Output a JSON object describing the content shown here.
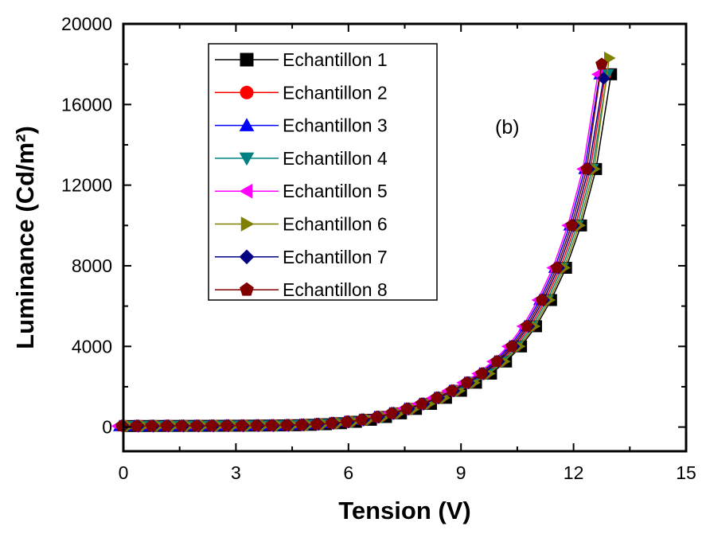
{
  "chart_data": {
    "type": "line",
    "xlabel": "Tension (V)",
    "ylabel": "Luminance (Cd/m²)",
    "xlim": [
      0,
      15
    ],
    "ylim": [
      -1200,
      20000
    ],
    "xticks": [
      0,
      3,
      6,
      9,
      12,
      15
    ],
    "xtick_labels": [
      "0",
      "3",
      "6",
      "9",
      "12",
      "15"
    ],
    "yticks": [
      0,
      4000,
      8000,
      12000,
      16000,
      20000
    ],
    "ytick_labels": [
      "0",
      "4000",
      "8000",
      "12000",
      "16000",
      "20000"
    ],
    "grid": false,
    "legend_position": "top-left",
    "annotation": "(b)",
    "x": [
      0,
      0.4,
      0.8,
      1.2,
      1.6,
      2.0,
      2.4,
      2.8,
      3.2,
      3.6,
      4.0,
      4.4,
      4.8,
      5.2,
      5.6,
      6.0,
      6.4,
      6.8,
      7.2,
      7.6,
      8.0,
      8.4,
      8.8,
      9.2,
      9.6,
      10.0,
      10.4,
      10.8,
      11.2,
      11.6,
      12.0,
      12.4,
      12.8
    ],
    "series": [
      {
        "name": "Echantillon 1",
        "marker": "square",
        "color": "#000000",
        "x_offset": 0.2,
        "values": [
          50,
          52,
          54,
          56,
          58,
          60,
          63,
          66,
          70,
          75,
          80,
          90,
          110,
          140,
          190,
          260,
          360,
          500,
          680,
          900,
          1150,
          1450,
          1800,
          2200,
          2650,
          3250,
          4000,
          5000,
          6300,
          7900,
          10000,
          12800,
          17500
        ]
      },
      {
        "name": "Echantillon 2",
        "marker": "circle",
        "color": "#ff0000",
        "x_offset": 0.05,
        "values": [
          50,
          52,
          54,
          56,
          58,
          60,
          63,
          66,
          70,
          75,
          80,
          90,
          110,
          140,
          190,
          260,
          360,
          500,
          680,
          900,
          1150,
          1450,
          1800,
          2200,
          2650,
          3250,
          4000,
          5000,
          6300,
          7900,
          10000,
          12800,
          17500
        ]
      },
      {
        "name": "Echantillon 3",
        "marker": "triangle-up",
        "color": "#0000ff",
        "x_offset": -0.1,
        "values": [
          50,
          52,
          54,
          56,
          58,
          60,
          63,
          66,
          70,
          75,
          80,
          90,
          110,
          140,
          190,
          260,
          360,
          500,
          680,
          900,
          1150,
          1450,
          1800,
          2200,
          2650,
          3250,
          4000,
          5000,
          6300,
          7900,
          10000,
          12800,
          17500
        ]
      },
      {
        "name": "Echantillon 4",
        "marker": "triangle-down",
        "color": "#008080",
        "x_offset": 0.1,
        "values": [
          50,
          52,
          54,
          56,
          58,
          60,
          63,
          66,
          70,
          75,
          80,
          90,
          110,
          140,
          190,
          260,
          360,
          500,
          680,
          900,
          1150,
          1450,
          1800,
          2200,
          2650,
          3250,
          4000,
          5000,
          6300,
          7900,
          10000,
          12800,
          17500
        ]
      },
      {
        "name": "Echantillon 5",
        "marker": "triangle-left",
        "color": "#ff00ff",
        "x_offset": -0.15,
        "values": [
          50,
          52,
          54,
          56,
          58,
          60,
          63,
          66,
          70,
          75,
          80,
          90,
          110,
          140,
          190,
          260,
          360,
          500,
          680,
          900,
          1150,
          1450,
          1800,
          2200,
          2650,
          3250,
          4000,
          5000,
          6300,
          7900,
          10000,
          12800,
          17500
        ]
      },
      {
        "name": "Echantillon 6",
        "marker": "triangle-right",
        "color": "#808000",
        "x_offset": 0.15,
        "values": [
          50,
          52,
          54,
          56,
          58,
          60,
          63,
          66,
          70,
          75,
          80,
          90,
          110,
          140,
          190,
          260,
          360,
          500,
          680,
          900,
          1150,
          1450,
          1800,
          2200,
          2650,
          3250,
          4000,
          5000,
          6300,
          7900,
          10000,
          12800,
          18300
        ]
      },
      {
        "name": "Echantillon 7",
        "marker": "diamond",
        "color": "#000080",
        "x_offset": 0.0,
        "values": [
          50,
          52,
          54,
          56,
          58,
          60,
          63,
          66,
          70,
          75,
          80,
          90,
          110,
          140,
          190,
          260,
          360,
          500,
          680,
          900,
          1150,
          1450,
          1800,
          2200,
          2650,
          3250,
          4000,
          5000,
          6300,
          7900,
          10000,
          12800,
          17300
        ]
      },
      {
        "name": "Echantillon 8",
        "marker": "pentagon",
        "color": "#800000",
        "x_offset": -0.05,
        "values": [
          50,
          52,
          54,
          56,
          58,
          60,
          63,
          66,
          70,
          75,
          80,
          90,
          110,
          140,
          190,
          260,
          360,
          500,
          680,
          900,
          1150,
          1450,
          1800,
          2200,
          2650,
          3250,
          4000,
          5000,
          6300,
          7900,
          10000,
          12800,
          18000
        ]
      }
    ]
  }
}
